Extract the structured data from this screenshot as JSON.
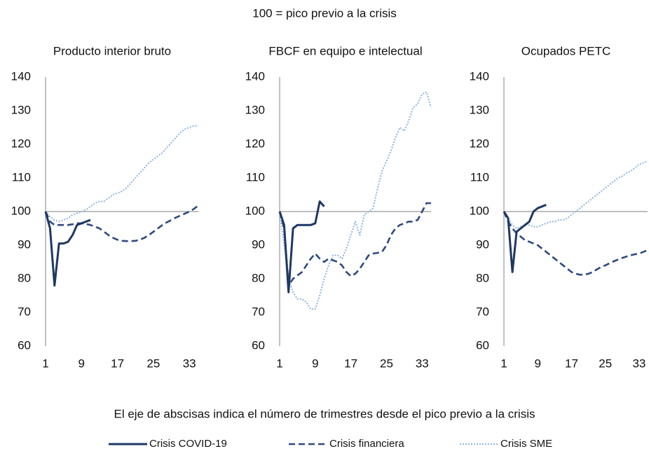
{
  "subtitle": "100 = pico previo a la crisis",
  "note": "El eje de abscisas indica el número de trimestres desde el pico previo a la crisis",
  "chart_data": [
    {
      "type": "line",
      "title": "Producto interior bruto",
      "x": [
        1,
        2,
        3,
        4,
        5,
        6,
        7,
        8,
        9,
        10,
        11,
        12,
        13,
        14,
        15,
        16,
        17,
        18,
        19,
        20,
        21,
        22,
        23,
        24,
        25,
        26,
        27,
        28,
        29,
        30,
        31,
        32,
        33,
        34,
        35
      ],
      "xlim": [
        1,
        35
      ],
      "xticks": [
        1,
        9,
        17,
        25,
        33
      ],
      "ylim": [
        60,
        140
      ],
      "yticks": [
        60,
        70,
        80,
        90,
        100,
        110,
        120,
        130,
        140
      ],
      "reference_line": 100,
      "series": [
        {
          "name": "Crisis COVID-19",
          "color": "#1f3864",
          "style": "solid",
          "values": [
            100,
            95,
            78,
            90.5,
            90.5,
            91,
            93,
            96,
            96.5,
            97,
            97.5,
            null,
            null,
            null,
            null,
            null,
            null,
            null,
            null,
            null,
            null,
            null,
            null,
            null,
            null,
            null,
            null,
            null,
            null,
            null,
            null,
            null,
            null,
            null,
            null
          ]
        },
        {
          "name": "Crisis financiera",
          "color": "#2f4a7f",
          "style": "dashed",
          "values": [
            100,
            97,
            96,
            96,
            96,
            96,
            96.2,
            96.5,
            96.5,
            96.3,
            96,
            95.5,
            95,
            94,
            93,
            92.2,
            91.6,
            91.3,
            91.2,
            91.2,
            91.3,
            91.6,
            92.2,
            93,
            94,
            95,
            96,
            96.8,
            97.5,
            98.2,
            98.8,
            99.4,
            100,
            100.8,
            101.8
          ]
        },
        {
          "name": "Crisis SME",
          "color": "#8fb4e3",
          "style": "dotted",
          "values": [
            100,
            98.5,
            97.5,
            97,
            97.5,
            98,
            99,
            99.5,
            100,
            100.5,
            101.5,
            102.5,
            103,
            103,
            104,
            105,
            105.5,
            106,
            107,
            108.5,
            110,
            111.5,
            113,
            114.5,
            115.5,
            116.5,
            117.5,
            119,
            120.5,
            122,
            123.5,
            124.5,
            125,
            125.5,
            125.5
          ]
        }
      ]
    },
    {
      "type": "line",
      "title": "FBCF en equipo e intelectual",
      "x": [
        1,
        2,
        3,
        4,
        5,
        6,
        7,
        8,
        9,
        10,
        11,
        12,
        13,
        14,
        15,
        16,
        17,
        18,
        19,
        20,
        21,
        22,
        23,
        24,
        25,
        26,
        27,
        28,
        29,
        30,
        31,
        32,
        33,
        34,
        35
      ],
      "xlim": [
        1,
        35
      ],
      "xticks": [
        1,
        9,
        17,
        25,
        33
      ],
      "ylim": [
        60,
        140
      ],
      "yticks": [
        60,
        70,
        80,
        90,
        100,
        110,
        120,
        130,
        140
      ],
      "reference_line": 100,
      "series": [
        {
          "color": "#1f3864",
          "style": "solid",
          "values": [
            100,
            96,
            76,
            95,
            96,
            96,
            96,
            96,
            96.5,
            103,
            101.5,
            null,
            null,
            null,
            null,
            null,
            null,
            null,
            null,
            null,
            null,
            null,
            null,
            null,
            null,
            null,
            null,
            null,
            null,
            null,
            null,
            null,
            null,
            null,
            null
          ]
        },
        {
          "color": "#2f4a7f",
          "style": "dashed",
          "values": [
            100,
            95,
            78,
            80,
            81,
            82,
            84,
            86,
            87.5,
            86,
            85,
            86,
            85.5,
            85,
            84,
            82,
            80.8,
            81.5,
            83,
            85,
            87,
            87.5,
            87.7,
            88,
            90,
            93,
            95,
            96,
            96.5,
            97,
            97,
            97.5,
            100,
            102.5,
            102.5
          ]
        },
        {
          "color": "#8fb4e3",
          "style": "dotted",
          "values": [
            100,
            90,
            80,
            76,
            74,
            74,
            73,
            71,
            71,
            75,
            80,
            84,
            87,
            87,
            86,
            89,
            93,
            97,
            93,
            99,
            100,
            101,
            107,
            112,
            115,
            118,
            122,
            125,
            124,
            127,
            131,
            132,
            135,
            135.5,
            131
          ]
        }
      ]
    },
    {
      "type": "line",
      "title": "Ocupados PETC",
      "x": [
        1,
        2,
        3,
        4,
        5,
        6,
        7,
        8,
        9,
        10,
        11,
        12,
        13,
        14,
        15,
        16,
        17,
        18,
        19,
        20,
        21,
        22,
        23,
        24,
        25,
        26,
        27,
        28,
        29,
        30,
        31,
        32,
        33,
        34,
        35
      ],
      "xlim": [
        1,
        35
      ],
      "xticks": [
        1,
        9,
        17,
        25,
        33
      ],
      "ylim": [
        60,
        140
      ],
      "yticks": [
        60,
        70,
        80,
        90,
        100,
        110,
        120,
        130,
        140
      ],
      "reference_line": 100,
      "series": [
        {
          "color": "#1f3864",
          "style": "solid",
          "values": [
            100,
            98,
            82,
            94,
            95,
            96,
            97,
            100,
            101,
            101.5,
            102,
            null,
            null,
            null,
            null,
            null,
            null,
            null,
            null,
            null,
            null,
            null,
            null,
            null,
            null,
            null,
            null,
            null,
            null,
            null,
            null,
            null,
            null,
            null,
            null
          ]
        },
        {
          "color": "#2f4a7f",
          "style": "dashed",
          "values": [
            100,
            97,
            95,
            93.5,
            92.5,
            91.5,
            91,
            90.5,
            90,
            89,
            88,
            87,
            86,
            85,
            84,
            83,
            82,
            81.5,
            81.2,
            81.2,
            81.5,
            82,
            82.8,
            83.5,
            84,
            84.6,
            85.2,
            85.7,
            86.2,
            86.6,
            87,
            87.3,
            87.5,
            88,
            88.5
          ]
        },
        {
          "color": "#8fb4e3",
          "style": "dotted",
          "values": [
            100,
            98,
            96,
            95,
            95.5,
            96,
            96,
            95.5,
            95.5,
            96,
            96.5,
            97,
            97,
            97.5,
            97.5,
            98,
            99,
            100,
            101,
            102,
            103,
            104,
            105,
            106,
            107,
            108,
            109,
            110,
            110.5,
            111.5,
            112,
            113,
            114,
            114.5,
            115
          ]
        }
      ]
    }
  ]
}
